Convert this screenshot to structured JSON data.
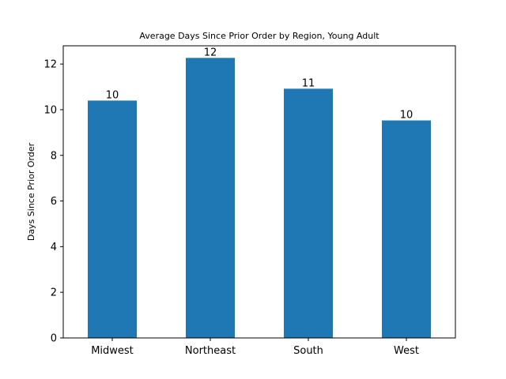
{
  "chart_data": {
    "type": "bar",
    "title": "Average Days Since Prior Order by Region, Young Adult",
    "xlabel": "",
    "ylabel": "Days Since Prior Order",
    "categories": [
      "Midwest",
      "Northeast",
      "South",
      "West"
    ],
    "values": [
      10.4,
      12.27,
      10.92,
      9.53
    ],
    "data_labels": [
      "10",
      "12",
      "11",
      "10"
    ],
    "ylim": [
      0,
      12.8
    ],
    "yticks": [
      0,
      2,
      4,
      6,
      8,
      10,
      12
    ],
    "grid": false,
    "legend": "none",
    "bar_color": "#1f77b4"
  }
}
